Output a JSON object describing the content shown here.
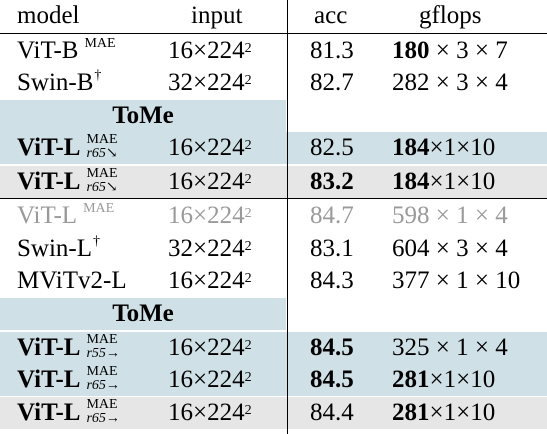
{
  "headers": [
    "model",
    "input",
    "acc",
    "gflops"
  ],
  "tome_label": "ToMe",
  "rows": [
    {
      "model": "ViT-B",
      "sup": "MAE",
      "input": "16×224",
      "input_sup": "2",
      "acc": "81.3",
      "gflops_bold": "180",
      "gflops_rest": " × 3 × 7"
    },
    {
      "model": "Swin-B",
      "sup": "†",
      "input": "32×224",
      "input_sup": "2",
      "acc": "82.7",
      "gflops_bold": "",
      "gflops_rest": "282 × 3 × 4"
    },
    {
      "model": "ViT-L",
      "sup": "MAE",
      "sub": "r65↘",
      "input": "16×224",
      "input_sup": "2",
      "acc": "82.5",
      "gflops_bold": "184",
      "gflops_rest": "×1×10"
    },
    {
      "model": "ViT-L",
      "sup": "MAE",
      "sub": "r65↘",
      "input": "16×224",
      "input_sup": "2",
      "acc": "83.2",
      "gflops_bold": "184",
      "gflops_rest": "×1×10"
    },
    {
      "model": "ViT-L",
      "sup": "MAE",
      "input": "16×224",
      "input_sup": "2",
      "acc": "84.7",
      "gflops_bold": "",
      "gflops_rest": "598 × 1 × 4"
    },
    {
      "model": "Swin-L",
      "sup": "†",
      "input": "32×224",
      "input_sup": "2",
      "acc": "83.1",
      "gflops_bold": "",
      "gflops_rest": "604 × 3 × 4"
    },
    {
      "model": "MViTv2-L",
      "input": "16×224",
      "input_sup": "2",
      "acc": "84.3",
      "gflops_bold": "",
      "gflops_rest": "377 × 1 × 10"
    },
    {
      "model": "ViT-L",
      "sup": "MAE",
      "sub": "r55→",
      "input": "16×224",
      "input_sup": "2",
      "acc": "84.5",
      "gflops_bold": "",
      "gflops_rest": "325 × 1 × 4"
    },
    {
      "model": "ViT-L",
      "sup": "MAE",
      "sub": "r65→",
      "input": "16×224",
      "input_sup": "2",
      "acc": "84.5",
      "gflops_bold": "281",
      "gflops_rest": "×1×10"
    },
    {
      "model": "ViT-L",
      "sup": "MAE",
      "sub": "r65→",
      "input": "16×224",
      "input_sup": "2",
      "acc": "84.4",
      "gflops_bold": "281",
      "gflops_rest": "×1×10"
    }
  ]
}
